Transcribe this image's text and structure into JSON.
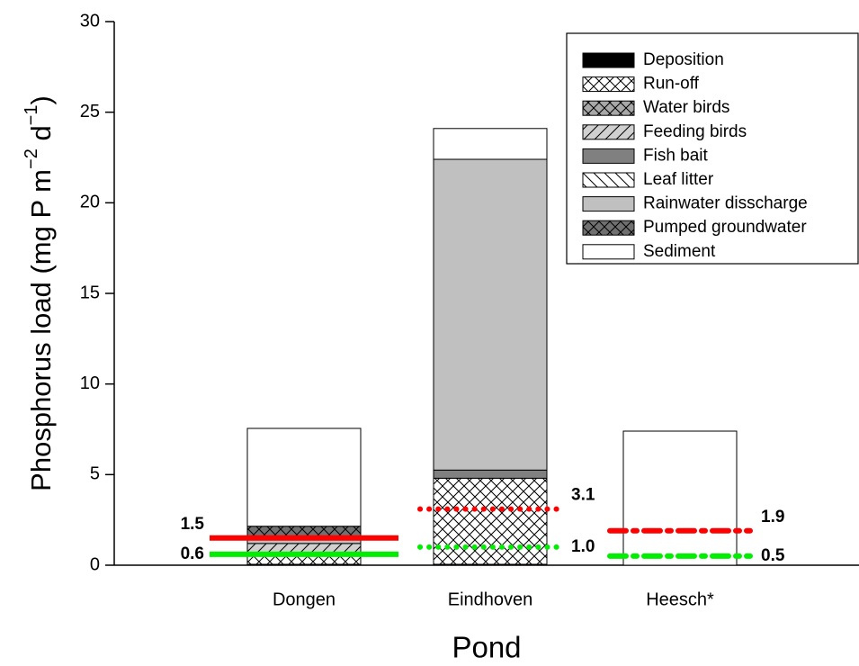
{
  "chart_data": {
    "type": "stacked_bar",
    "y_label": [
      "Phosphorus load (mg P m",
      "−2",
      " d",
      "−1",
      ")"
    ],
    "x_label": "Pond",
    "categories": [
      "Dongen",
      "Eindhoven",
      "Heesch*"
    ],
    "series": [
      {
        "name": "Deposition",
        "color": "#000000",
        "pattern": "solid",
        "values": [
          0.05,
          0.05,
          0
        ]
      },
      {
        "name": "Run-off",
        "color": "#ffffff",
        "pattern": "crosshatch",
        "values": [
          0.45,
          4.75,
          0
        ]
      },
      {
        "name": "Water birds",
        "color": "#a8a8a8",
        "pattern": "crosshatch",
        "values": [
          0,
          0,
          0
        ]
      },
      {
        "name": "Feeding birds",
        "color": "#d0d0d0",
        "pattern": "diagonal",
        "values": [
          0.7,
          0,
          0
        ]
      },
      {
        "name": "Fish bait",
        "color": "#808080",
        "pattern": "solid",
        "values": [
          0,
          0.45,
          0
        ]
      },
      {
        "name": "Leaf litter",
        "color": "#ffffff",
        "pattern": "backdiagonal",
        "values": [
          0,
          0,
          0
        ]
      },
      {
        "name": "Rainwater disscharge",
        "color": "#c0c0c0",
        "pattern": "solid",
        "values": [
          0.4,
          17.15,
          0
        ]
      },
      {
        "name": "Pumped groundwater",
        "color": "#707070",
        "pattern": "crosshatch",
        "values": [
          0.55,
          0,
          0
        ]
      },
      {
        "name": "Sediment",
        "color": "#ffffff",
        "pattern": "solid",
        "values": [
          5.4,
          1.7,
          7.4
        ]
      }
    ],
    "reference_lines": [
      {
        "color": "#ff0000",
        "values": [
          1.5,
          3.1,
          1.9
        ],
        "styles": [
          "solid",
          "dotted",
          "dashdot"
        ]
      },
      {
        "color": "#00ee00",
        "values": [
          0.6,
          1.0,
          0.5
        ],
        "value_labels": [
          "0.6",
          "1.0",
          "0.5"
        ],
        "styles": [
          "solid",
          "dotted",
          "dashdot"
        ]
      }
    ],
    "ylim": [
      0,
      30
    ],
    "yticks": [
      0,
      5,
      10,
      15,
      20,
      25,
      30
    ],
    "legend": "top-right"
  }
}
